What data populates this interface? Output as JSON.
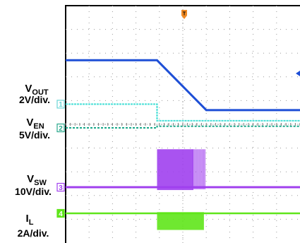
{
  "chart_data": {
    "type": "line",
    "title": "",
    "channels": [
      {
        "id": "1",
        "name": "V",
        "sub": "OUT",
        "scale": "2V/div.",
        "color": "#1e4fd6",
        "marker_color": "#6ad6d6"
      },
      {
        "id": "2",
        "name": "V",
        "sub": "EN",
        "scale": "5V/div.",
        "color": "#1aa88a",
        "marker_color": "#2aa88c"
      },
      {
        "id": "3",
        "name": "V",
        "sub": "SW",
        "scale": "10V/div.",
        "color": "#a040ee",
        "marker_color": "#a040ee"
      },
      {
        "id": "4",
        "name": "I",
        "sub": "L",
        "scale": "2A/div.",
        "color": "#5fe51a",
        "marker_color": "#5fe51a"
      }
    ],
    "x_range_div": [
      0,
      10
    ],
    "y_range_div": [
      0,
      10
    ],
    "grid": true,
    "trigger_label": "T",
    "vout_div": {
      "x": [
        0,
        3.9,
        6.0,
        10.3
      ],
      "y": [
        7.7,
        7.7,
        5.6,
        5.6
      ]
    },
    "ref1_div": {
      "x": [
        0,
        3.9,
        3.9,
        10.3
      ],
      "y": [
        5.85,
        5.85,
        5.15,
        5.15
      ]
    },
    "ven_div": {
      "x": [
        0,
        3.9,
        3.9,
        10.3
      ],
      "y": [
        4.85,
        4.85,
        4.92,
        4.92
      ]
    },
    "vsw_div": {
      "base": 2.35,
      "burst_start": 3.9,
      "burst_end": 5.45,
      "burst_top": 3.95,
      "pulse_end": 6.0
    },
    "il_div": {
      "base": 1.25,
      "burst_start": 3.9,
      "burst_end": 5.9,
      "burst_top": 1.3,
      "burst_bottom": 0.55
    }
  }
}
